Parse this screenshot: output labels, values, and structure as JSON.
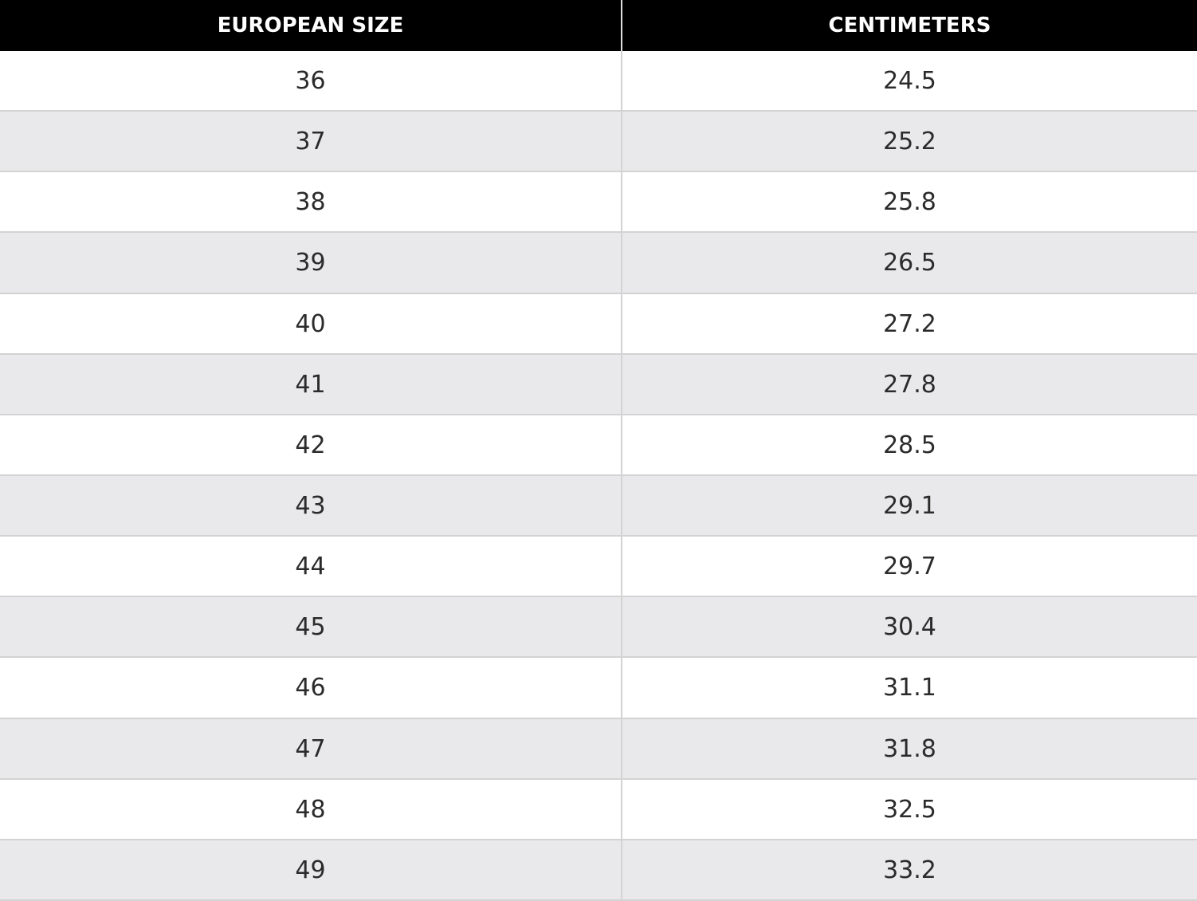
{
  "table": {
    "header": [
      "EUROPEAN SIZE",
      "CENTIMETERS"
    ],
    "rows": [
      [
        36,
        24.5
      ],
      [
        37,
        25.2
      ],
      [
        38,
        25.8
      ],
      [
        39,
        26.5
      ],
      [
        40,
        27.2
      ],
      [
        41,
        27.8
      ],
      [
        42,
        28.5
      ],
      [
        43,
        29.1
      ],
      [
        44,
        29.7
      ],
      [
        45,
        30.4
      ],
      [
        46,
        31.1
      ],
      [
        47,
        31.8
      ],
      [
        48,
        32.5
      ],
      [
        49,
        33.2
      ]
    ]
  }
}
